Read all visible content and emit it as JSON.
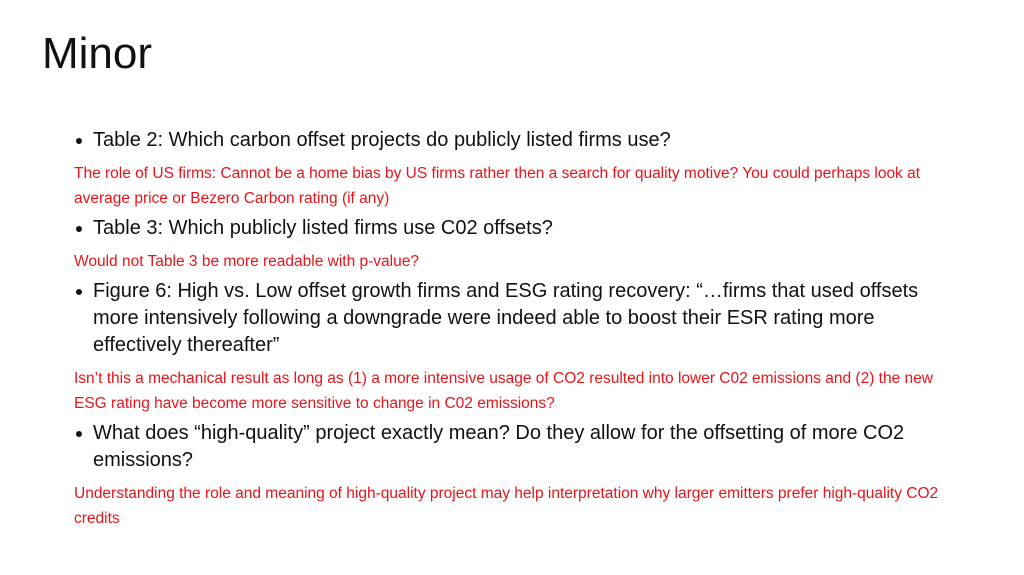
{
  "title": "Minor",
  "items": [
    {
      "bullet": "Table 2: Which carbon offset projects do publicly listed firms use?",
      "comment": "The role of US firms: Cannot be a home bias by US firms rather then a search for quality motive?  You could perhaps look at average price or Bezero  Carbon rating (if any)"
    },
    {
      "bullet": "Table 3: Which publicly listed firms use C02 offsets?",
      "comment": "Would not Table 3 be more readable with p-value?"
    },
    {
      "bullet": "Figure 6: High vs. Low offset growth firms and ESG rating recovery: “…firms that used offsets more intensively following a downgrade were indeed able to boost their ESR rating more effectively thereafter”",
      "comment": "Isn’t this a mechanical result as long as (1) a more intensive usage of CO2 resulted into lower C02 emissions and (2) the new ESG rating have become more sensitive to change in C02 emissions?"
    },
    {
      "bullet": "What does “high-quality” project exactly mean? Do they allow for the offsetting of more CO2 emissions?",
      "comment": "Understanding the role and meaning of high-quality project may help interpretation why larger emitters prefer high-quality CO2 credits"
    }
  ]
}
